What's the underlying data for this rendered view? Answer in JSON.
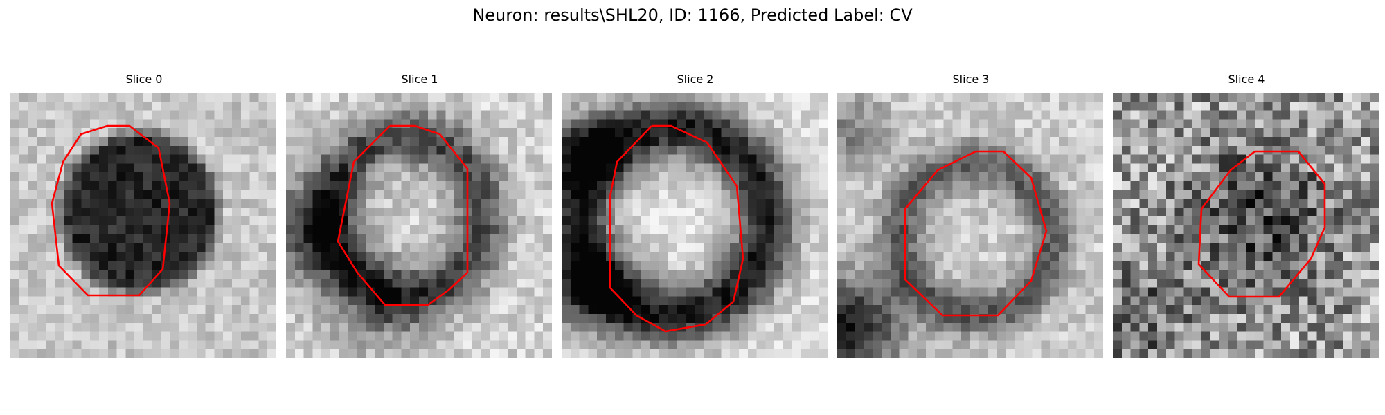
{
  "figure": {
    "title": "Neuron: results\\SHL20, ID: 1166, Predicted Label: CV",
    "outline_color": "#ff0000",
    "colormap": "gray",
    "grid_size": 30
  },
  "panels": [
    {
      "title": "Slice 0",
      "pattern": "dark-blob"
    },
    {
      "title": "Slice 1",
      "pattern": "ring"
    },
    {
      "title": "Slice 2",
      "pattern": "ring-thick"
    },
    {
      "title": "Slice 3",
      "pattern": "faint-ring"
    },
    {
      "title": "Slice 4",
      "pattern": "noisy-blob"
    }
  ]
}
